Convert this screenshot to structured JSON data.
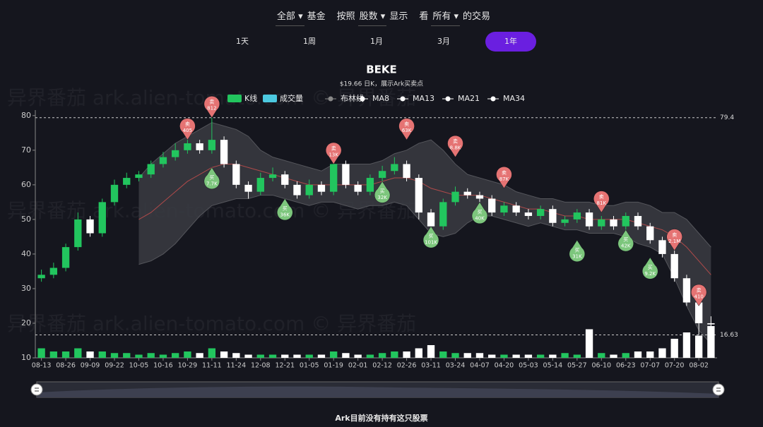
{
  "filters": [
    {
      "select": "全部",
      "after": "基金"
    },
    {
      "before": "按照",
      "select": "股数",
      "after": "显示"
    },
    {
      "before": "看",
      "select": "所有",
      "after": "的交易"
    }
  ],
  "periods": [
    "1天",
    "1周",
    "1月",
    "3月",
    "1年"
  ],
  "watermark": "异界番茄   ark.alien-tomato.com   © 异界番茄",
  "footer": "Ark目前没有持有这只股票",
  "chart_data": {
    "type": "candlestick",
    "title": "BEKE",
    "subtitle": "$19.66 日K，展示Ark买卖点",
    "legend": [
      {
        "name": "K线",
        "color": "#22c55e",
        "shape": "rect"
      },
      {
        "name": "成交量",
        "color": "#4cc9e0",
        "shape": "rect"
      },
      {
        "name": "布林线",
        "color": "#888888",
        "shape": "line"
      },
      {
        "name": "MA8",
        "color": "#ffffff",
        "shape": "line"
      },
      {
        "name": "MA13",
        "color": "#ffffff",
        "shape": "line"
      },
      {
        "name": "MA21",
        "color": "#ffffff",
        "shape": "line"
      },
      {
        "name": "MA34",
        "color": "#ffffff",
        "shape": "line"
      }
    ],
    "categories": [
      "08-13",
      null,
      "08-26",
      null,
      "09-09",
      null,
      "09-22",
      null,
      "10-05",
      null,
      "10-16",
      null,
      "10-29",
      null,
      "11-11",
      null,
      "11-24",
      null,
      "12-08",
      null,
      "12-21",
      null,
      "01-05",
      null,
      "01-19",
      null,
      "02-01",
      null,
      "02-12",
      null,
      "02-26",
      null,
      "03-11",
      null,
      "03-24",
      null,
      "04-07",
      null,
      "04-20",
      null,
      "05-03",
      null,
      "05-14",
      null,
      "05-27",
      null,
      "06-10",
      null,
      "06-23",
      null,
      "07-07",
      null,
      "07-20",
      null,
      "08-02",
      null
    ],
    "ohlc": [
      [
        33,
        34,
        32,
        35.5
      ],
      [
        34,
        36,
        33,
        37.5
      ],
      [
        36,
        42,
        35,
        43
      ],
      [
        42,
        50,
        41,
        52
      ],
      [
        50,
        46,
        45,
        51
      ],
      [
        46,
        55,
        45,
        56
      ],
      [
        55,
        60,
        54,
        61.5
      ],
      [
        60,
        62,
        59,
        63.5
      ],
      [
        62,
        63,
        61,
        64
      ],
      [
        63,
        66,
        62,
        67
      ],
      [
        66,
        68,
        65,
        69.5
      ],
      [
        68,
        70,
        67,
        72
      ],
      [
        70,
        72,
        69,
        74
      ],
      [
        72,
        70,
        69,
        73
      ],
      [
        70,
        73,
        69,
        79.4
      ],
      [
        73,
        66,
        65,
        74
      ],
      [
        66,
        60,
        59,
        67
      ],
      [
        60,
        58,
        56,
        61
      ],
      [
        58,
        62,
        57,
        63.5
      ],
      [
        62,
        63,
        61,
        65
      ],
      [
        63,
        60,
        59,
        64
      ],
      [
        60,
        57,
        56,
        61
      ],
      [
        57,
        60,
        56,
        61.5
      ],
      [
        60,
        58,
        57,
        61
      ],
      [
        58,
        66,
        57,
        68
      ],
      [
        66,
        60,
        59,
        67
      ],
      [
        60,
        58,
        57,
        61
      ],
      [
        58,
        62,
        57,
        63
      ],
      [
        62,
        64,
        61,
        65.5
      ],
      [
        64,
        66,
        63,
        68
      ],
      [
        66,
        62,
        61,
        67
      ],
      [
        62,
        52,
        50,
        63
      ],
      [
        52,
        48,
        46,
        53
      ],
      [
        48,
        55,
        47,
        56
      ],
      [
        55,
        58,
        54,
        59.5
      ],
      [
        58,
        57,
        56,
        59
      ],
      [
        57,
        56,
        55,
        58
      ],
      [
        56,
        52,
        51,
        57
      ],
      [
        52,
        54,
        51,
        55
      ],
      [
        54,
        52,
        51,
        55
      ],
      [
        52,
        51,
        50,
        53
      ],
      [
        51,
        53,
        50,
        54
      ],
      [
        53,
        49,
        48,
        54
      ],
      [
        49,
        50,
        48,
        51
      ],
      [
        50,
        52,
        49,
        53
      ],
      [
        52,
        48,
        47,
        53
      ],
      [
        48,
        50,
        47,
        51
      ],
      [
        50,
        48,
        47,
        51
      ],
      [
        48,
        51,
        47,
        52
      ],
      [
        51,
        48,
        47,
        52
      ],
      [
        48,
        44,
        43,
        49
      ],
      [
        44,
        40,
        39,
        45
      ],
      [
        40,
        33,
        32,
        41
      ],
      [
        33,
        26,
        25,
        34
      ],
      [
        26,
        20,
        16.63,
        27
      ],
      [
        20,
        19.66,
        18,
        22
      ]
    ],
    "volume": [
      3,
      2,
      2,
      3,
      2,
      2,
      1.5,
      1.5,
      1,
      1.5,
      1,
      1.5,
      2,
      1.5,
      3,
      2,
      1.5,
      1,
      1,
      1,
      1,
      1,
      1,
      1,
      2,
      1.5,
      1,
      1,
      1.5,
      2,
      2,
      3,
      4,
      2,
      1.5,
      1.5,
      1.5,
      1,
      1,
      1,
      1,
      1,
      1,
      1.5,
      1,
      9,
      1.5,
      1,
      1.5,
      2,
      2,
      3,
      6,
      8,
      7,
      10
    ],
    "bollinger": {
      "upper": [
        null,
        null,
        null,
        null,
        null,
        null,
        null,
        null,
        62,
        66,
        69,
        72,
        74,
        76,
        78,
        77,
        76,
        74,
        70,
        68,
        67,
        66,
        65,
        64,
        66,
        66,
        66,
        66,
        67,
        69,
        70,
        72,
        73,
        70,
        66,
        63,
        62,
        61,
        60,
        58,
        57,
        56,
        56,
        55,
        55,
        55,
        54,
        54,
        55,
        55,
        54,
        52,
        52,
        50,
        46,
        42
      ],
      "middle": [
        null,
        null,
        null,
        null,
        null,
        null,
        null,
        null,
        50,
        52,
        55,
        58,
        61,
        63,
        65,
        66,
        66,
        65,
        64,
        63,
        62,
        61,
        60,
        60,
        60,
        60,
        60,
        60,
        61,
        62,
        62,
        61,
        59,
        58,
        57,
        57,
        57,
        56,
        55,
        54,
        53,
        53,
        52,
        51,
        51,
        50,
        50,
        50,
        50,
        49,
        48,
        47,
        45,
        42,
        38,
        34
      ],
      "lower": [
        null,
        null,
        null,
        null,
        null,
        null,
        null,
        null,
        37,
        38,
        40,
        43,
        47,
        51,
        54,
        55,
        56,
        56,
        57,
        57,
        56,
        55,
        54,
        55,
        55,
        54,
        53,
        54,
        54,
        55,
        54,
        50,
        46,
        45,
        46,
        49,
        51,
        51,
        50,
        49,
        48,
        49,
        48,
        47,
        47,
        46,
        46,
        46,
        45,
        43,
        42,
        40,
        33,
        25,
        18,
        14
      ]
    },
    "trades": [
      {
        "date": "10-29",
        "side": "卖",
        "label": "405",
        "price": 73
      },
      {
        "date": "11-11",
        "side": "卖",
        "label": "812",
        "price": 79.4
      },
      {
        "date": "11-11",
        "side": "买",
        "label": "7.7K",
        "price": 65
      },
      {
        "date": "12-21",
        "side": "买",
        "label": "36K",
        "price": 56
      },
      {
        "date": "01-19",
        "side": "卖",
        "label": "13K",
        "price": 66
      },
      {
        "date": "02-12",
        "side": "买",
        "label": "32K",
        "price": 61
      },
      {
        "date": "02-26",
        "side": "卖",
        "label": "63K",
        "price": 73
      },
      {
        "date": "03-11",
        "side": "买",
        "label": "101K",
        "price": 48
      },
      {
        "date": "03-24",
        "side": "卖",
        "label": "8.8K",
        "price": 68
      },
      {
        "date": "04-07",
        "side": "买",
        "label": "40K",
        "price": 55
      },
      {
        "date": "04-20",
        "side": "卖",
        "label": "87K",
        "price": 59
      },
      {
        "date": "05-27",
        "side": "买",
        "label": "31K",
        "price": 44
      },
      {
        "date": "06-10",
        "side": "卖",
        "label": "81K",
        "price": 52
      },
      {
        "date": "06-23",
        "side": "买",
        "label": "42K",
        "price": 47
      },
      {
        "date": "07-07",
        "side": "买",
        "label": "9.2K",
        "price": 39
      },
      {
        "date": "07-20",
        "side": "卖",
        "label": "2.1M",
        "price": 41
      },
      {
        "date": "08-02",
        "side": "卖",
        "label": "410",
        "price": 25
      }
    ],
    "max_line": 79.4,
    "min_line": 16.63,
    "ylim": [
      10,
      82
    ],
    "yticks": [
      10,
      20,
      30,
      40,
      50,
      60,
      70,
      80
    ],
    "grid": false,
    "up_color": "#22c55e",
    "down_color": "#ffffff",
    "sell_color": "#e57373",
    "buy_color": "#7cc67c",
    "band_color": "#3a3b42",
    "mid_color": "#b04a4a"
  }
}
